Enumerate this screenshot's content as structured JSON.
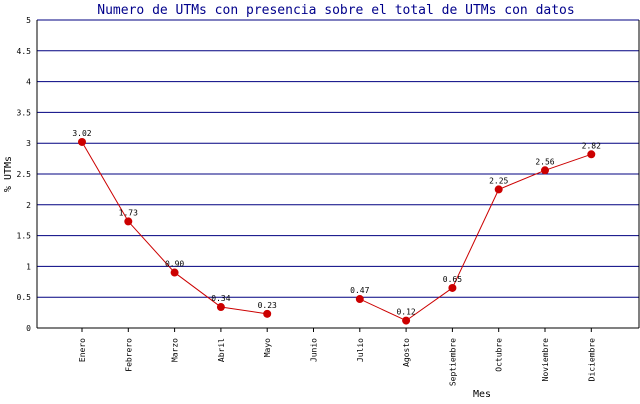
{
  "chart_data": {
    "type": "line",
    "title": "Numero de UTMs con presencia sobre el total de UTMs con datos",
    "xlabel": "Mes",
    "ylabel": "% UTMs",
    "ylim": [
      0,
      5
    ],
    "yticks": [
      "0",
      "0.5",
      "1",
      "1.5",
      "2",
      "2.5",
      "3",
      "3.5",
      "4",
      "4.5",
      "5"
    ],
    "grid": true,
    "categories": [
      "Enero",
      "Febrero",
      "Marzo",
      "Abril",
      "Mayo",
      "Junio",
      "Julio",
      "Agosto",
      "Septiembre",
      "Octubre",
      "Noviembre",
      "Diciembre"
    ],
    "series": [
      {
        "values": [
          3.02,
          1.73,
          0.9,
          0.34,
          0.23,
          null,
          0.47,
          0.12,
          0.65,
          2.25,
          2.56,
          2.82
        ],
        "labels": [
          "3.02",
          "1.73",
          "0.90",
          "0.34",
          "0.23",
          null,
          "0.47",
          "0.12",
          "0.65",
          "2.25",
          "2.56",
          "2.82"
        ]
      }
    ],
    "colors": {
      "title": "#00008b",
      "axis": "#000000",
      "grid": "#000080",
      "line": "#cc0000",
      "marker": "#cc0000",
      "text": "#000000"
    }
  }
}
